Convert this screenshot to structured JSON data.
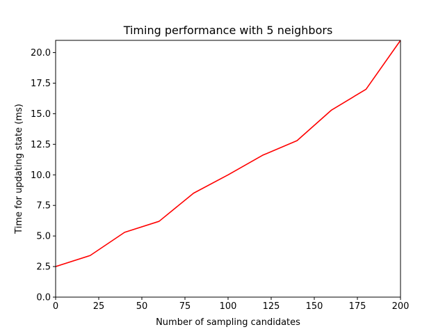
{
  "chart_data": {
    "type": "line",
    "title": "Timing performance with 5 neighbors",
    "xlabel": "Number of sampling candidates",
    "ylabel": "Time for updating state (ms)",
    "xlim": [
      0,
      200
    ],
    "ylim": [
      0,
      21
    ],
    "xticks": [
      0,
      25,
      50,
      75,
      100,
      125,
      150,
      175,
      200
    ],
    "xtick_labels": [
      "0",
      "25",
      "50",
      "75",
      "100",
      "125",
      "150",
      "175",
      "200"
    ],
    "yticks": [
      0,
      2.5,
      5,
      7.5,
      10,
      12.5,
      15,
      17.5,
      20
    ],
    "ytick_labels": [
      "0.0",
      "2.5",
      "5.0",
      "7.5",
      "10.0",
      "12.5",
      "15.0",
      "17.5",
      "20.0"
    ],
    "grid": false,
    "series": [
      {
        "color": "#ff0000",
        "x": [
          0,
          20,
          40,
          60,
          80,
          100,
          120,
          140,
          160,
          180,
          200
        ],
        "y": [
          2.5,
          3.4,
          5.3,
          6.2,
          8.5,
          10.0,
          11.6,
          12.8,
          15.3,
          17.0,
          21.0
        ]
      }
    ]
  }
}
